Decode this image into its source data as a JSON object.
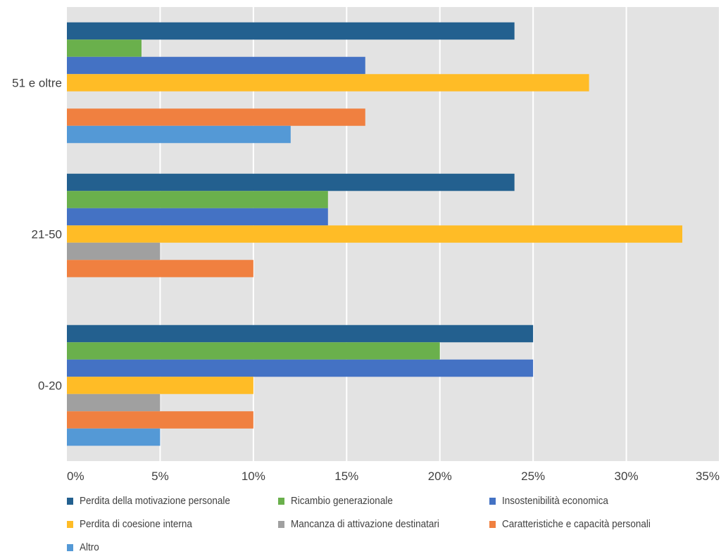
{
  "chart_data": {
    "type": "bar",
    "orientation": "horizontal",
    "categories": [
      "51 e oltre",
      "21-50",
      "0-20"
    ],
    "xlim": [
      0,
      35
    ],
    "x_ticks": [
      "0%",
      "5%",
      "10%",
      "15%",
      "20%",
      "25%",
      "30%",
      "35%"
    ],
    "grid": true,
    "legend_position": "bottom",
    "series": [
      {
        "name": "Perdita della motivazione personale",
        "color": "#23608F",
        "values": [
          24,
          24,
          25
        ]
      },
      {
        "name": "Ricambio generazionale",
        "color": "#6AB04C",
        "values": [
          4,
          14,
          20
        ]
      },
      {
        "name": "Insostenibilità economica",
        "color": "#4472C4",
        "values": [
          16,
          14,
          25
        ]
      },
      {
        "name": "Perdita di coesione interna",
        "color": "#FFBC26",
        "values": [
          28,
          33,
          10
        ]
      },
      {
        "name": "Mancanza di attivazione destinatari",
        "color": "#A0A0A0",
        "values": [
          0,
          5,
          5
        ]
      },
      {
        "name": "Caratteristiche e capacità personali",
        "color": "#F08040",
        "values": [
          16,
          10,
          10
        ]
      },
      {
        "name": "Altro",
        "color": "#5499D6",
        "values": [
          12,
          0,
          5
        ]
      }
    ]
  }
}
